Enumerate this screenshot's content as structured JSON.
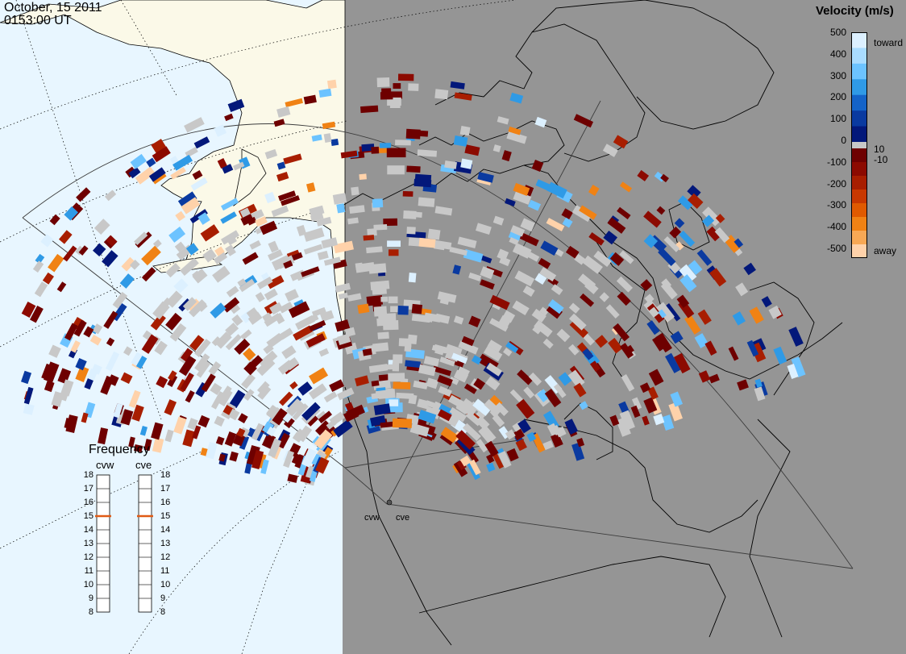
{
  "timestamp": {
    "date": "October, 15 2011",
    "time": "0153:00 UT"
  },
  "colorbar": {
    "title": "Velocity (m/s)",
    "ticks": [
      "500",
      "400",
      "300",
      "200",
      "100",
      "0",
      "-100",
      "-200",
      "-300",
      "-400",
      "-500"
    ],
    "inner_ticks": [
      "10",
      "-10"
    ],
    "toward_label": "toward",
    "away_label": "away",
    "colors_toward": [
      "#dcf0ff",
      "#a9dcff",
      "#6cc3ff",
      "#2f9ae6",
      "#1463c8",
      "#0a3aa0",
      "#03187a"
    ],
    "colors_away": [
      "#6e0000",
      "#8c0a00",
      "#a81e00",
      "#c83800",
      "#e05a00",
      "#f08214",
      "#f7a855",
      "#ffd2aa"
    ]
  },
  "frequency": {
    "title": "Frequency",
    "radars": [
      {
        "name": "cvw",
        "selected": 15
      },
      {
        "name": "cve",
        "selected": 15
      }
    ],
    "scale": [
      "18",
      "17",
      "16",
      "15",
      "14",
      "13",
      "12",
      "11",
      "10",
      "9",
      "8"
    ],
    "marker_color": "#e05a14"
  },
  "radar_sites": [
    "cvw",
    "cve"
  ],
  "colors": {
    "ocean": "#e8f6ff",
    "land_daylight": "#fbf9e8",
    "night": "#959595",
    "ground_scatter": "#c8c8c8",
    "coast": "#000000"
  }
}
